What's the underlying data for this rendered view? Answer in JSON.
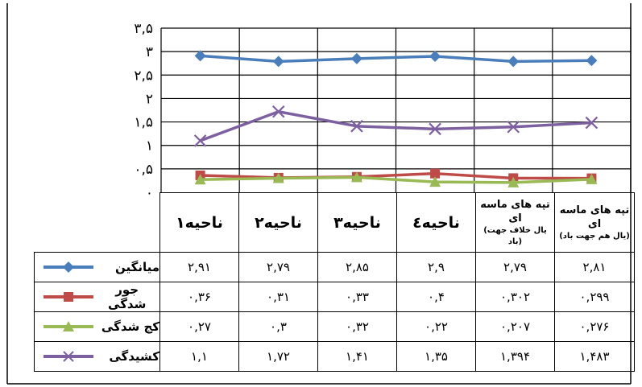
{
  "chart_data": {
    "type": "line",
    "categories": [
      {
        "main": "ناحیه۱",
        "sub": ""
      },
      {
        "main": "ناحیه۲",
        "sub": ""
      },
      {
        "main": "ناحیه۳",
        "sub": ""
      },
      {
        "main": "ناحیه٤",
        "sub": ""
      },
      {
        "main": "تپه های ماسه ای",
        "sub": "(یال خلاف جهت باد)"
      },
      {
        "main": "تپه های ماسه ای",
        "sub": "(یال هم جهت باد)"
      }
    ],
    "y_tick_labels": [
      "٠",
      "٠,۵",
      "۱",
      "۱,۵",
      "۲",
      "۲,۵",
      "۳",
      "۳,۵"
    ],
    "y_ticks": [
      0,
      0.5,
      1,
      1.5,
      2,
      2.5,
      3,
      3.5
    ],
    "ylim": [
      0,
      3.5
    ],
    "grid": true,
    "series": [
      {
        "name": "میانگین",
        "color": "#4a7ebb",
        "marker": "diamond",
        "values": [
          2.91,
          2.79,
          2.85,
          2.9,
          2.79,
          2.81
        ],
        "labels": [
          "۲,۹۱",
          "۲,۷۹",
          "۲,۸۵",
          "۲,۹",
          "۲,۷۹",
          "۲,۸۱"
        ]
      },
      {
        "name": "جور شدگی",
        "color": "#be4b48",
        "marker": "square",
        "values": [
          0.36,
          0.31,
          0.33,
          0.4,
          0.302,
          0.299
        ],
        "labels": [
          "٠,۳۶",
          "٠,۳۱",
          "٠,۳۳",
          "٠,۴",
          "٠,۳٠۲",
          "٠,۲۹۹"
        ]
      },
      {
        "name": "کج شدگی",
        "color": "#98b954",
        "marker": "triangle",
        "values": [
          0.27,
          0.3,
          0.32,
          0.22,
          0.207,
          0.276
        ],
        "labels": [
          "٠,۲۷",
          "٠,۳",
          "٠,۳۲",
          "٠,۲۲",
          "٠,۲٠۷",
          "٠,۲۷۶"
        ]
      },
      {
        "name": "کشیدگی",
        "color": "#7d60a0",
        "marker": "x",
        "values": [
          1.1,
          1.72,
          1.41,
          1.35,
          1.394,
          1.483
        ],
        "labels": [
          "۱,۱",
          "۱,۷۲",
          "۱,۴۱",
          "۱,۳۵",
          "۱,۳۹۴",
          "۱,۴۸۳"
        ]
      }
    ]
  }
}
